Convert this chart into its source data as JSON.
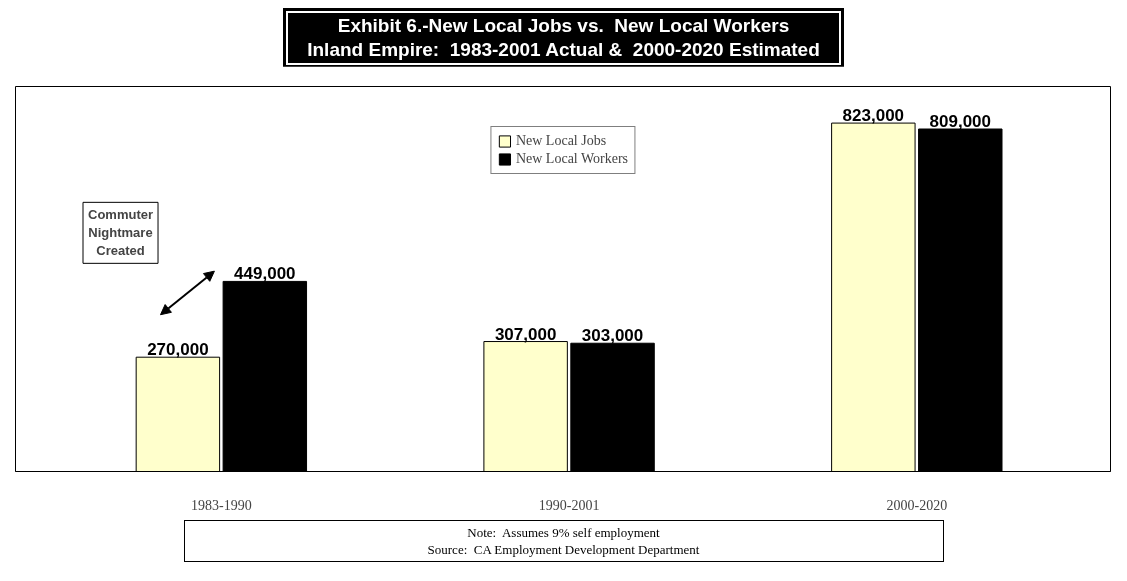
{
  "chart_data": {
    "type": "bar",
    "title": "Exhibit 6.-New Local Jobs vs.  New Local Workers",
    "subtitle": "Inland Empire:  1983-2001 Actual &  2000-2020 Estimated",
    "categories": [
      "1983-1990",
      "1990-2001",
      "2000-2020"
    ],
    "series": [
      {
        "name": "New Local Jobs",
        "color": "#ffffcc",
        "values": [
          270000,
          307000,
          823000
        ],
        "value_labels": [
          "270,000",
          "307,000",
          "823,000"
        ]
      },
      {
        "name": "New Local Workers",
        "color": "#000000",
        "values": [
          449000,
          303000,
          809000
        ],
        "value_labels": [
          "449,000",
          "303,000",
          "809,000"
        ]
      }
    ],
    "grid": false,
    "legend": "top",
    "annotations": [
      "Commuter Nightmare Created",
      "Note:  Assumes 9% self employment",
      "Source:  CA Employment Development Department"
    ]
  }
}
